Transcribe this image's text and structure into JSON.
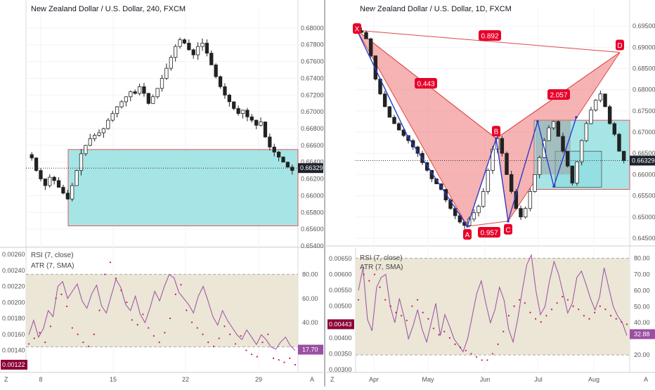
{
  "colors": {
    "up": "#ffffff",
    "down": "#222222",
    "box_fill": "#a6e5e6",
    "box_stroke": "#e05555",
    "rsi_band": "#ebe6d6",
    "rsi_line": "#9b4ea3",
    "atr_dot": "#c2185b",
    "pattern_fill": "#f08080",
    "pattern_line": "#e04848",
    "wave": "#2a3cc8",
    "label_bg": "#e8002a",
    "price_badge": "#1e222d",
    "atr_badge": "#8b0036"
  },
  "left": {
    "title": "New Zealand Dollar / U.S. Dollar, 240, FXCM",
    "y_ticks": [
      "0.68000",
      "0.67800",
      "0.67600",
      "0.67400",
      "0.67200",
      "0.67000",
      "0.66800",
      "0.66600",
      "0.66400",
      "0.66200",
      "0.66000",
      "0.65800",
      "0.65600",
      "0.65400"
    ],
    "current_price": "0.66329",
    "x_ticks": [
      "8",
      "15",
      "22",
      "29"
    ],
    "rsi_label": "RSI (7, close)",
    "atr_label": "ATR (7, SMA)",
    "atr_ticks": [
      "0.00260",
      "0.00240",
      "0.00220",
      "0.00200",
      "0.00180",
      "0.00160",
      "0.00140",
      "0.00122"
    ],
    "rsi_ticks": [
      "80.00",
      "60.00",
      "40.00",
      "17.70"
    ],
    "rsi_value": "17.70",
    "atr_value": "0.00122",
    "corner_z": "Z",
    "corner_a": "A"
  },
  "right": {
    "title": "New Zealand Dollar / U.S. Dollar, 1D, FXCM",
    "y_ticks": [
      "0.69500",
      "0.69000",
      "0.68500",
      "0.68000",
      "0.67500",
      "0.67000",
      "0.66500",
      "0.66000",
      "0.65500",
      "0.65000",
      "0.64500"
    ],
    "current_price": "0.66329",
    "x_ticks": [
      "Apr",
      "May",
      "Jun",
      "Jul",
      "Aug"
    ],
    "pattern_points": [
      "X",
      "A",
      "B",
      "C",
      "D"
    ],
    "ratios": {
      "xb": "0.443",
      "ac": "0.957",
      "bd": "2.057",
      "xd": "0.892"
    },
    "rsi_label": "RSI (7, close)",
    "atr_label": "ATR (7, SMA)",
    "atr_ticks": [
      "0.00650",
      "0.00600",
      "0.00550",
      "0.00500",
      "0.00443",
      "0.00400",
      "0.00350",
      "0.00300"
    ],
    "rsi_ticks": [
      "80.00",
      "70.00",
      "60.00",
      "50.00",
      "40.00",
      "32.88",
      "20.00"
    ],
    "rsi_value": "32.88",
    "atr_value": "0.00443",
    "corner_z": "Z",
    "corner_a": "A"
  },
  "chart_data": [
    {
      "type": "candlestick",
      "title": "New Zealand Dollar / U.S. Dollar, 240, FXCM",
      "ylim": [
        0.654,
        0.6815
      ],
      "x_labels": [
        "8",
        "15",
        "22",
        "29"
      ],
      "close_path": [
        0.6645,
        0.663,
        0.662,
        0.6612,
        0.6622,
        0.6618,
        0.661,
        0.6603,
        0.6596,
        0.6612,
        0.663,
        0.665,
        0.666,
        0.6668,
        0.6672,
        0.6675,
        0.668,
        0.669,
        0.6698,
        0.6706,
        0.6712,
        0.6718,
        0.6724,
        0.6722,
        0.673,
        0.6722,
        0.671,
        0.6718,
        0.6728,
        0.674,
        0.6752,
        0.6765,
        0.6778,
        0.6786,
        0.6782,
        0.6774,
        0.6768,
        0.6778,
        0.6782,
        0.677,
        0.6756,
        0.6742,
        0.673,
        0.672,
        0.6712,
        0.6704,
        0.6698,
        0.6702,
        0.6694,
        0.669,
        0.6684,
        0.6688,
        0.667,
        0.6658,
        0.6652,
        0.6646,
        0.664,
        0.6634,
        0.663
      ],
      "zone": {
        "top": 0.6655,
        "bottom": 0.6564
      },
      "current": 0.66329,
      "rsi": {
        "band": [
          20,
          80
        ],
        "value": 17.7
      },
      "atr_last": 0.00122
    },
    {
      "type": "candlestick",
      "title": "New Zealand Dollar / U.S. Dollar, 1D, FXCM",
      "ylim": [
        0.6435,
        0.6975
      ],
      "x_labels": [
        "Apr",
        "May",
        "Jun",
        "Jul",
        "Aug"
      ],
      "close_path": [
        0.6935,
        0.692,
        0.688,
        0.6825,
        0.679,
        0.676,
        0.6735,
        0.672,
        0.6705,
        0.6692,
        0.668,
        0.6665,
        0.665,
        0.6628,
        0.661,
        0.659,
        0.6578,
        0.6565,
        0.654,
        0.652,
        0.6503,
        0.6488,
        0.648,
        0.6495,
        0.651,
        0.6525,
        0.656,
        0.661,
        0.666,
        0.6685,
        0.665,
        0.66,
        0.656,
        0.652,
        0.65,
        0.652,
        0.656,
        0.66,
        0.664,
        0.668,
        0.671,
        0.6725,
        0.669,
        0.6655,
        0.662,
        0.658,
        0.663,
        0.668,
        0.672,
        0.6752,
        0.6775,
        0.679,
        0.676,
        0.672,
        0.6695,
        0.6655,
        0.6633
      ],
      "harmonic": {
        "X": 0.694,
        "A": 0.6478,
        "B": 0.6685,
        "C": 0.649,
        "D": 0.6888
      },
      "ratios": {
        "XB": 0.443,
        "AC": 0.957,
        "BD": 2.057,
        "XD": 0.892
      },
      "zone": {
        "top": 0.6728,
        "bottom": 0.6565
      },
      "current": 0.66329,
      "rsi": {
        "band": [
          20,
          80
        ],
        "value": 32.88
      },
      "atr_last": 0.00443
    }
  ]
}
